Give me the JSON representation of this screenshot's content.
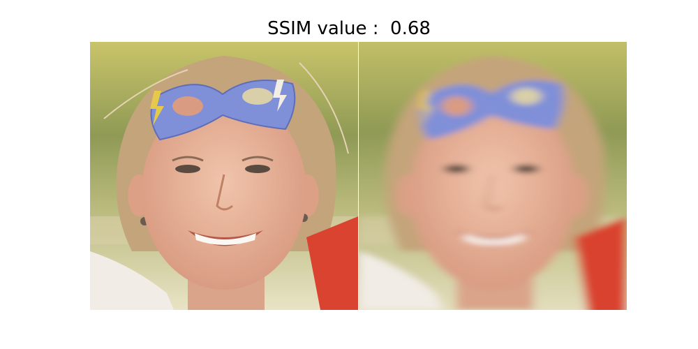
{
  "figure": {
    "title_prefix": "SSIM value :",
    "ssim_value": "0.68",
    "title": "SSIM value :  0.68"
  },
  "panels": [
    {
      "name": "original-image",
      "depiction": "smiling woman wearing a blue eye-mask on her forehead"
    },
    {
      "name": "blurred-image",
      "depiction": "motion-blurred version of the same photo"
    }
  ],
  "colors": {
    "mask": "#7f8fd8",
    "skin": "#e8b49c",
    "hair": "#b99a70",
    "grass": "#a9b36a",
    "sky_bg": "#dcd27a",
    "shirt": "#f1ece5",
    "red_sleeve": "#d9432f"
  }
}
